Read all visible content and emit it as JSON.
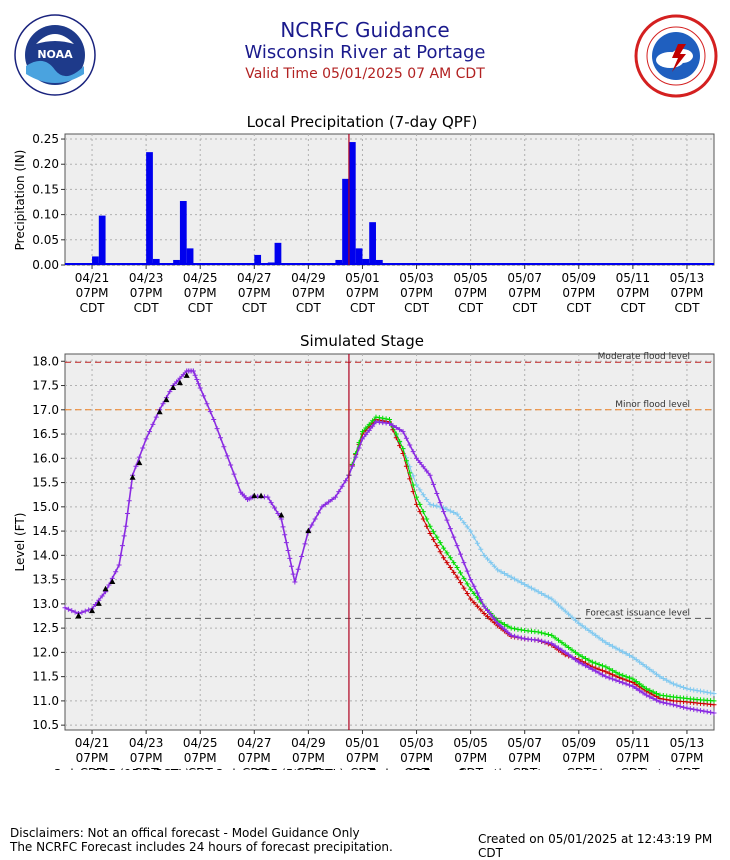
{
  "header": {
    "title": "NCRFC Guidance",
    "subtitle": "Wisconsin River at Portage",
    "valid_time": "Valid Time 05/01/2025 07 AM CDT"
  },
  "colors": {
    "title": "#1a1a8c",
    "valid": "#b22222",
    "precip_bar": "#0000ee",
    "qpf95": "#7ec8f0",
    "qpf5": "#cc0000",
    "qpf7": "#00dd00",
    "operational": "#8a2be2",
    "observed": "#000000",
    "moderate_line": "#c02020",
    "minor_line": "#f08020",
    "issuance_line": "#555555",
    "valid_line": "#b00020"
  },
  "x_ticks": [
    "04/21",
    "04/23",
    "04/25",
    "04/27",
    "04/29",
    "05/01",
    "05/03",
    "05/05",
    "05/07",
    "05/09",
    "05/11",
    "05/13"
  ],
  "x_tick_time": "07PM",
  "x_tick_tz": "CDT",
  "footer": {
    "disclaimer_1": "Disclaimers: Not an offical forecast - Model Guidance Only",
    "disclaimer_2": "The NCRFC Forecast includes 24 hours of forecast precipitation.",
    "created": "Created on 05/01/2025 at 12:43:19 PM CDT"
  },
  "chart_data": [
    {
      "type": "bar",
      "title": "Local Precipitation (7-day QPF)",
      "ylabel": "Precipitation (IN)",
      "ylim": [
        0,
        0.26
      ],
      "yticks": [
        "0.00",
        "0.05",
        "0.10",
        "0.15",
        "0.20",
        "0.25"
      ],
      "grid": true,
      "bars_6h": [
        {
          "t": "04/21 07PM",
          "v": 0.017
        },
        {
          "t": "04/22 01AM",
          "v": 0.098
        },
        {
          "t": "04/23 07PM",
          "v": 0.224
        },
        {
          "t": "04/24 01AM",
          "v": 0.012
        },
        {
          "t": "04/24 07PM",
          "v": 0.01
        },
        {
          "t": "04/25 01AM",
          "v": 0.127
        },
        {
          "t": "04/25 07AM",
          "v": 0.033
        },
        {
          "t": "04/27 07PM",
          "v": 0.02
        },
        {
          "t": "04/28 07AM",
          "v": 0.005
        },
        {
          "t": "04/28 01PM",
          "v": 0.044
        },
        {
          "t": "04/30 07PM",
          "v": 0.01
        },
        {
          "t": "05/01 01AM",
          "v": 0.171
        },
        {
          "t": "05/01 07AM",
          "v": 0.244
        },
        {
          "t": "05/01 01PM",
          "v": 0.033
        },
        {
          "t": "05/01 07PM",
          "v": 0.012
        },
        {
          "t": "05/02 01AM",
          "v": 0.085
        },
        {
          "t": "05/02 07AM",
          "v": 0.01
        }
      ]
    },
    {
      "type": "line",
      "title": "Simulated Stage",
      "ylabel": "Level (FT)",
      "ylim": [
        10.4,
        18.15
      ],
      "yticks": [
        "10.5",
        "11.0",
        "11.5",
        "12.0",
        "12.5",
        "13.0",
        "13.5",
        "14.0",
        "14.5",
        "15.0",
        "15.5",
        "16.0",
        "16.5",
        "17.0",
        "17.5",
        "18.0"
      ],
      "grid": true,
      "reference_lines": [
        {
          "label": "Moderate flood level",
          "value": 17.98
        },
        {
          "label": "Minor flood level",
          "value": 17.0
        },
        {
          "label": "Forecast issuance level",
          "value": 12.7
        }
      ],
      "valid_time": "05/01/2025 07 AM CDT",
      "legend_position": "bottom",
      "legend": [
        "3-day QPF (95th PCTL)",
        "3-day QPF (5th PCTL)",
        "7-day QPF",
        "Operational stage",
        "Observed stage"
      ],
      "operational_stage": [
        [
          "04/20 07PM",
          12.92
        ],
        [
          "04/21 07AM",
          12.8
        ],
        [
          "04/21 07PM",
          12.9
        ],
        [
          "04/22 07AM",
          13.25
        ],
        [
          "04/22 07PM",
          13.8
        ],
        [
          "04/23 01AM",
          14.6
        ],
        [
          "04/23 07AM",
          15.65
        ],
        [
          "04/23 07PM",
          16.4
        ],
        [
          "04/24 07AM",
          17.0
        ],
        [
          "04/24 07PM",
          17.5
        ],
        [
          "04/25 07AM",
          17.8
        ],
        [
          "04/25 01PM",
          17.8
        ],
        [
          "04/25 07PM",
          17.45
        ],
        [
          "04/26 07AM",
          16.8
        ],
        [
          "04/26 07PM",
          16.05
        ],
        [
          "04/27 07AM",
          15.3
        ],
        [
          "04/27 01PM",
          15.15
        ],
        [
          "04/27 07PM",
          15.22
        ],
        [
          "04/28 07AM",
          15.2
        ],
        [
          "04/28 07PM",
          14.75
        ],
        [
          "04/29 01AM",
          14.1
        ],
        [
          "04/29 07AM",
          13.45
        ],
        [
          "04/29 07PM",
          14.5
        ],
        [
          "04/30 07AM",
          15.0
        ],
        [
          "04/30 07PM",
          15.2
        ],
        [
          "05/01 07AM",
          15.65
        ],
        [
          "05/01 07PM",
          16.4
        ],
        [
          "05/02 07AM",
          16.75
        ],
        [
          "05/02 07PM",
          16.72
        ],
        [
          "05/03 07AM",
          16.55
        ],
        [
          "05/03 07PM",
          16.0
        ],
        [
          "05/04 07AM",
          15.65
        ],
        [
          "05/04 07PM",
          14.9
        ],
        [
          "05/05 07AM",
          14.2
        ],
        [
          "05/05 07PM",
          13.5
        ],
        [
          "05/06 07AM",
          12.95
        ],
        [
          "05/06 07PM",
          12.6
        ],
        [
          "05/07 07AM",
          12.35
        ],
        [
          "05/07 07PM",
          12.28
        ],
        [
          "05/08 07AM",
          12.25
        ],
        [
          "05/08 07PM",
          12.18
        ],
        [
          "05/09 07AM",
          12.0
        ],
        [
          "05/09 07PM",
          11.8
        ],
        [
          "05/10 07AM",
          11.65
        ],
        [
          "05/10 07PM",
          11.5
        ],
        [
          "05/11 07AM",
          11.4
        ],
        [
          "05/11 07PM",
          11.3
        ],
        [
          "05/12 07AM",
          11.12
        ],
        [
          "05/12 07PM",
          10.98
        ],
        [
          "05/13 07AM",
          10.92
        ],
        [
          "05/13 07PM",
          10.85
        ],
        [
          "05/14 07AM",
          10.8
        ],
        [
          "05/14 07PM",
          10.75
        ]
      ],
      "qpf_3day_95th": [
        [
          "05/01 07AM",
          15.65
        ],
        [
          "05/01 07PM",
          16.5
        ],
        [
          "05/02 07AM",
          16.78
        ],
        [
          "05/02 07PM",
          16.72
        ],
        [
          "05/03 07AM",
          16.2
        ],
        [
          "05/03 07PM",
          15.45
        ],
        [
          "05/04 07AM",
          15.05
        ],
        [
          "05/04 07PM",
          14.98
        ],
        [
          "05/05 07AM",
          14.85
        ],
        [
          "05/05 07PM",
          14.5
        ],
        [
          "05/06 07AM",
          14.0
        ],
        [
          "05/06 07PM",
          13.7
        ],
        [
          "05/07 07AM",
          13.55
        ],
        [
          "05/07 07PM",
          13.4
        ],
        [
          "05/08 07AM",
          13.25
        ],
        [
          "05/08 07PM",
          13.1
        ],
        [
          "05/09 07AM",
          12.85
        ],
        [
          "05/09 07PM",
          12.6
        ],
        [
          "05/10 07AM",
          12.4
        ],
        [
          "05/10 07PM",
          12.2
        ],
        [
          "05/11 07AM",
          12.05
        ],
        [
          "05/11 07PM",
          11.9
        ],
        [
          "05/12 07AM",
          11.7
        ],
        [
          "05/12 07PM",
          11.5
        ],
        [
          "05/13 07AM",
          11.35
        ],
        [
          "05/13 07PM",
          11.25
        ],
        [
          "05/14 07AM",
          11.2
        ],
        [
          "05/14 07PM",
          11.15
        ]
      ],
      "qpf_3day_5th": [
        [
          "05/01 07AM",
          15.65
        ],
        [
          "05/01 07PM",
          16.5
        ],
        [
          "05/02 07AM",
          16.8
        ],
        [
          "05/02 07PM",
          16.75
        ],
        [
          "05/03 07AM",
          16.1
        ],
        [
          "05/03 07PM",
          15.05
        ],
        [
          "05/04 07AM",
          14.45
        ],
        [
          "05/04 07PM",
          13.95
        ],
        [
          "05/05 07AM",
          13.55
        ],
        [
          "05/05 07PM",
          13.1
        ],
        [
          "05/06 07AM",
          12.8
        ],
        [
          "05/06 07PM",
          12.55
        ],
        [
          "05/07 07AM",
          12.33
        ],
        [
          "05/07 07PM",
          12.28
        ],
        [
          "05/08 07AM",
          12.25
        ],
        [
          "05/08 07PM",
          12.15
        ],
        [
          "05/09 07AM",
          11.95
        ],
        [
          "05/09 07PM",
          11.85
        ],
        [
          "05/10 07AM",
          11.7
        ],
        [
          "05/10 07PM",
          11.6
        ],
        [
          "05/11 07AM",
          11.48
        ],
        [
          "05/11 07PM",
          11.38
        ],
        [
          "05/12 07AM",
          11.2
        ],
        [
          "05/12 07PM",
          11.05
        ],
        [
          "05/13 07AM",
          11.0
        ],
        [
          "05/13 07PM",
          10.98
        ],
        [
          "05/14 07AM",
          10.95
        ],
        [
          "05/14 07PM",
          10.92
        ]
      ],
      "qpf_7day": [
        [
          "05/01 07AM",
          15.65
        ],
        [
          "05/01 07PM",
          16.55
        ],
        [
          "05/02 07AM",
          16.85
        ],
        [
          "05/02 07PM",
          16.8
        ],
        [
          "05/03 07AM",
          16.2
        ],
        [
          "05/03 07PM",
          15.2
        ],
        [
          "05/04 07AM",
          14.6
        ],
        [
          "05/04 07PM",
          14.15
        ],
        [
          "05/05 07AM",
          13.75
        ],
        [
          "05/05 07PM",
          13.3
        ],
        [
          "05/06 07AM",
          12.95
        ],
        [
          "05/06 07PM",
          12.65
        ],
        [
          "05/07 07AM",
          12.5
        ],
        [
          "05/07 07PM",
          12.45
        ],
        [
          "05/08 07AM",
          12.42
        ],
        [
          "05/08 07PM",
          12.35
        ],
        [
          "05/09 07AM",
          12.15
        ],
        [
          "05/09 07PM",
          11.95
        ],
        [
          "05/10 07AM",
          11.8
        ],
        [
          "05/10 07PM",
          11.7
        ],
        [
          "05/11 07AM",
          11.55
        ],
        [
          "05/11 07PM",
          11.45
        ],
        [
          "05/12 07AM",
          11.25
        ],
        [
          "05/12 07PM",
          11.12
        ],
        [
          "05/13 07AM",
          11.08
        ],
        [
          "05/13 07PM",
          11.05
        ],
        [
          "05/14 07AM",
          11.02
        ],
        [
          "05/14 07PM",
          11.0
        ]
      ],
      "observed_stage": [
        [
          "04/21 07AM",
          12.75
        ],
        [
          "04/21 07PM",
          12.85
        ],
        [
          "04/22 01AM",
          13.0
        ],
        [
          "04/22 07AM",
          13.3
        ],
        [
          "04/22 01PM",
          13.45
        ],
        [
          "04/23 07AM",
          15.6
        ],
        [
          "04/23 01PM",
          15.9
        ],
        [
          "04/24 07AM",
          16.95
        ],
        [
          "04/24 01PM",
          17.2
        ],
        [
          "04/24 07PM",
          17.45
        ],
        [
          "04/25 01AM",
          17.55
        ],
        [
          "04/25 07AM",
          17.7
        ],
        [
          "04/27 07PM",
          15.22
        ],
        [
          "04/28 01AM",
          15.22
        ],
        [
          "04/28 07PM",
          14.82
        ],
        [
          "04/29 07PM",
          14.5
        ]
      ]
    }
  ]
}
